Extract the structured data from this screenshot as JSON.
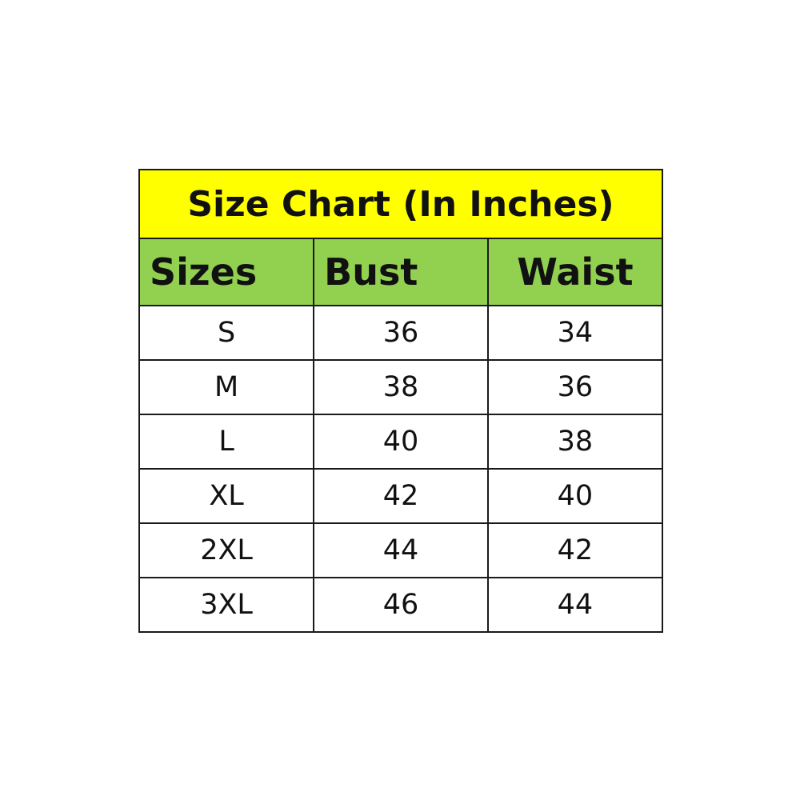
{
  "title": "Size Chart (In Inches)",
  "headers": [
    "Sizes",
    "Bust",
    "Waist"
  ],
  "rows": [
    [
      "S",
      "36",
      "34"
    ],
    [
      "M",
      "38",
      "36"
    ],
    [
      "L",
      "40",
      "38"
    ],
    [
      "XL",
      "42",
      "40"
    ],
    [
      "2XL",
      "44",
      "42"
    ],
    [
      "3XL",
      "46",
      "44"
    ]
  ],
  "colors": {
    "title_bg": "#ffff00",
    "header_bg": "#92d050",
    "border": "#1a1a1a"
  }
}
